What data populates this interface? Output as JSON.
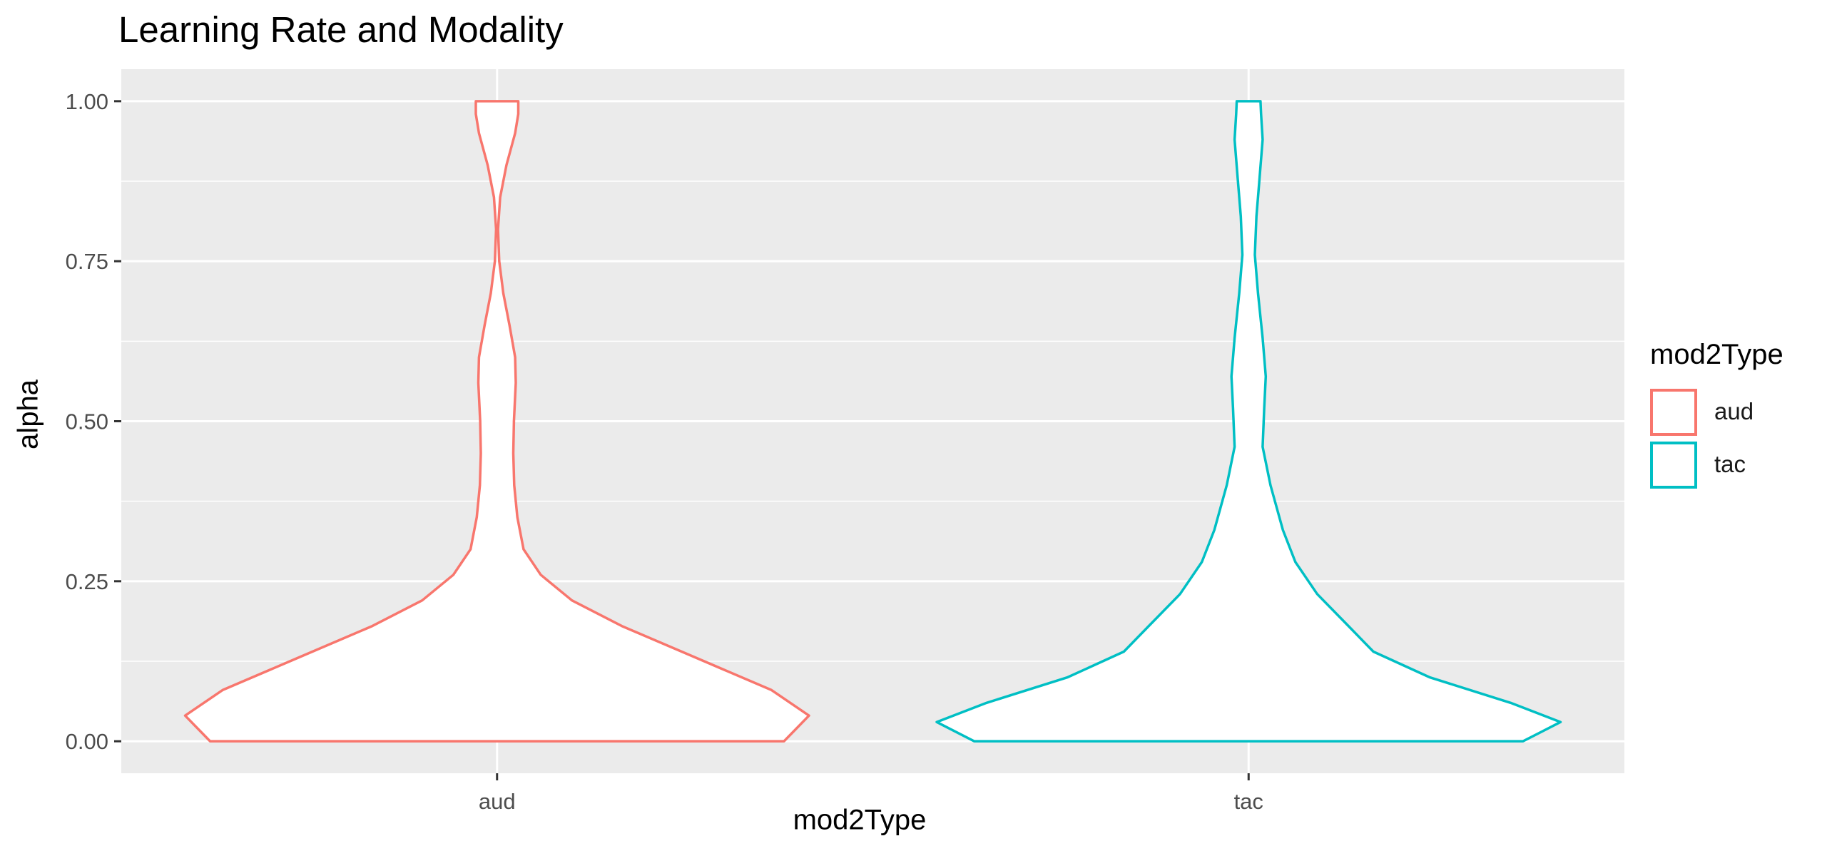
{
  "chart_data": {
    "type": "violin",
    "title": "Learning Rate and Modality",
    "xlabel": "mod2Type",
    "ylabel": "alpha",
    "categories": [
      "aud",
      "tac"
    ],
    "ylim": [
      -0.05,
      1.05
    ],
    "yticks": [
      0,
      0.25,
      0.5,
      0.75,
      1
    ],
    "ytick_labels": [
      "0.00",
      "0.25",
      "0.50",
      "0.75",
      "1.00"
    ],
    "grid": true,
    "legend": {
      "title": "mod2Type",
      "position": "right",
      "entries": [
        "aud",
        "tac"
      ]
    },
    "series": [
      {
        "name": "aud",
        "color": "#F8766D",
        "y_range": [
          0,
          1
        ],
        "density_profile": [
          {
            "y": 0.0,
            "w": 0.92
          },
          {
            "y": 0.04,
            "w": 1.0
          },
          {
            "y": 0.08,
            "w": 0.88
          },
          {
            "y": 0.13,
            "w": 0.64
          },
          {
            "y": 0.18,
            "w": 0.4
          },
          {
            "y": 0.22,
            "w": 0.24
          },
          {
            "y": 0.26,
            "w": 0.14
          },
          {
            "y": 0.3,
            "w": 0.085
          },
          {
            "y": 0.35,
            "w": 0.065
          },
          {
            "y": 0.4,
            "w": 0.055
          },
          {
            "y": 0.45,
            "w": 0.052
          },
          {
            "y": 0.5,
            "w": 0.054
          },
          {
            "y": 0.56,
            "w": 0.06
          },
          {
            "y": 0.6,
            "w": 0.058
          },
          {
            "y": 0.65,
            "w": 0.04
          },
          {
            "y": 0.7,
            "w": 0.02
          },
          {
            "y": 0.75,
            "w": 0.007
          },
          {
            "y": 0.8,
            "w": 0.003
          },
          {
            "y": 0.85,
            "w": 0.01
          },
          {
            "y": 0.9,
            "w": 0.03
          },
          {
            "y": 0.95,
            "w": 0.058
          },
          {
            "y": 0.98,
            "w": 0.068
          },
          {
            "y": 1.0,
            "w": 0.068
          }
        ]
      },
      {
        "name": "tac",
        "color": "#00BFC4",
        "y_range": [
          0,
          1
        ],
        "density_profile": [
          {
            "y": 0.0,
            "w": 0.88
          },
          {
            "y": 0.03,
            "w": 1.0
          },
          {
            "y": 0.06,
            "w": 0.84
          },
          {
            "y": 0.1,
            "w": 0.58
          },
          {
            "y": 0.14,
            "w": 0.4
          },
          {
            "y": 0.18,
            "w": 0.32
          },
          {
            "y": 0.23,
            "w": 0.22
          },
          {
            "y": 0.28,
            "w": 0.15
          },
          {
            "y": 0.33,
            "w": 0.11
          },
          {
            "y": 0.4,
            "w": 0.07
          },
          {
            "y": 0.46,
            "w": 0.045
          },
          {
            "y": 0.52,
            "w": 0.05
          },
          {
            "y": 0.57,
            "w": 0.055
          },
          {
            "y": 0.63,
            "w": 0.045
          },
          {
            "y": 0.7,
            "w": 0.03
          },
          {
            "y": 0.76,
            "w": 0.02
          },
          {
            "y": 0.82,
            "w": 0.025
          },
          {
            "y": 0.88,
            "w": 0.035
          },
          {
            "y": 0.94,
            "w": 0.045
          },
          {
            "y": 0.98,
            "w": 0.04
          },
          {
            "y": 1.0,
            "w": 0.038
          }
        ]
      }
    ]
  }
}
